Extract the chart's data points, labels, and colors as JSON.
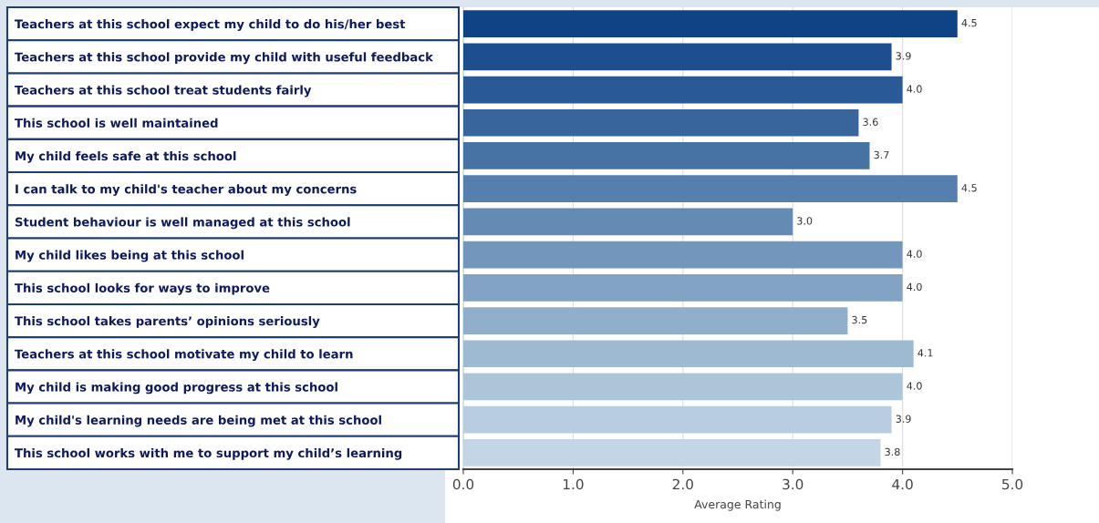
{
  "chart_data": {
    "type": "bar",
    "orientation": "horizontal",
    "xlabel": "Average Rating",
    "categories": [
      "Teachers at this school expect my child to do his/her best",
      "Teachers at this school provide my child with useful feedback",
      "Teachers at this school treat students fairly",
      "This school is well maintained",
      "My child feels safe at this school",
      "I can talk to my child's teacher about my concerns",
      "Student behaviour is well managed at this school",
      "My child likes being at this school",
      "This school looks for ways to improve",
      "This school takes parents’ opinions seriously",
      "Teachers at this school motivate my child to learn",
      "My child is making good progress at this school",
      "My child's learning needs are being met at this school",
      "This school works with me to support my child’s learning"
    ],
    "values": [
      4.5,
      3.9,
      4.0,
      3.6,
      3.7,
      4.5,
      3.0,
      4.0,
      4.0,
      3.5,
      4.1,
      4.0,
      3.9,
      3.8
    ],
    "colors": [
      "#0e4386",
      "#1d4e8d",
      "#2a5a95",
      "#38669c",
      "#4672a4",
      "#557fac",
      "#648bb4",
      "#7397bc",
      "#82a3c4",
      "#90afca",
      "#9ebad2",
      "#adc5d9",
      "#b8cee0",
      "#c4d6e5"
    ],
    "xlim": [
      0,
      5
    ],
    "xticks": [
      {
        "value": 0,
        "label": "0.0"
      },
      {
        "value": 1,
        "label": "1.0"
      },
      {
        "value": 2,
        "label": "2.0"
      },
      {
        "value": 3,
        "label": "3.0"
      },
      {
        "value": 4,
        "label": "4.0"
      },
      {
        "value": 5,
        "label": "5.0"
      }
    ],
    "value_labels": [
      "4.5",
      "3.9",
      "4.0",
      "3.6",
      "3.7",
      "4.5",
      "3.0",
      "4.0",
      "4.0",
      "3.5",
      "4.1",
      "4.0",
      "3.9",
      "3.8"
    ],
    "grid": "x"
  }
}
